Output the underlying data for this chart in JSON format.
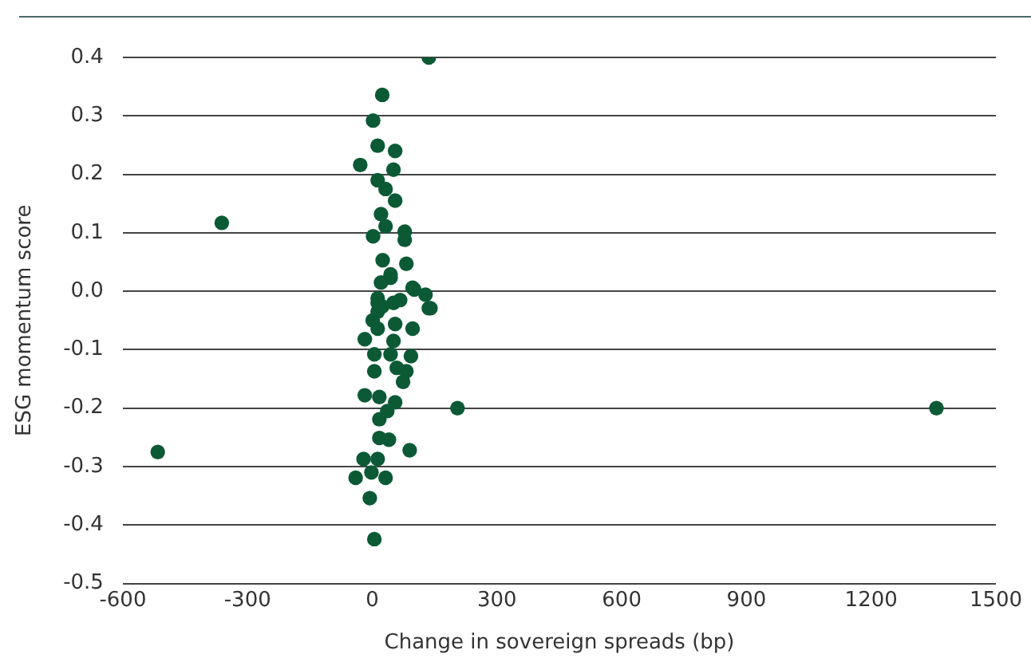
{
  "chart_data": {
    "type": "scatter",
    "xlabel": "Change in sovereign spreads (bp)",
    "ylabel": "ESG momentum score",
    "xlim": [
      -600,
      1500
    ],
    "xticks": [
      -600,
      -300,
      0,
      300,
      600,
      900,
      1200,
      1500
    ],
    "ylim": [
      -0.5,
      0.4
    ],
    "yticks": [
      0.4,
      0.3,
      0.2,
      0.1,
      {
        "value": 0,
        "label": "0.0"
      },
      -0.1,
      -0.2,
      -0.3,
      -0.4,
      -0.5
    ],
    "grid": "y",
    "legend": false,
    "marker": "circle",
    "series": [
      {
        "color": "#0b5a35",
        "x": [
          136,
          24,
          -362,
          -516,
          205,
          1357,
          5,
          -6,
          -40,
          -2,
          32,
          -21,
          13,
          90,
          17,
          40,
          17,
          55,
          36,
          -18,
          17,
          74,
          5,
          59,
          82,
          93,
          44,
          5,
          -18,
          13,
          51,
          97,
          55,
          1,
          24,
          67,
          140,
          128,
          97,
          13,
          44,
          21,
          2,
          13,
          55,
          -29,
          51,
          13,
          32,
          55,
          21,
          2,
          32,
          78,
          78,
          25,
          82,
          44,
          101,
          136,
          13,
          51,
          13
        ],
        "values": [
          0.4,
          0.336,
          0.117,
          -0.275,
          -0.2,
          -0.2,
          -0.424,
          -0.354,
          -0.319,
          -0.31,
          -0.319,
          -0.287,
          -0.287,
          -0.272,
          -0.251,
          -0.254,
          -0.219,
          -0.19,
          -0.205,
          -0.178,
          -0.181,
          -0.155,
          -0.137,
          -0.131,
          -0.137,
          -0.111,
          -0.108,
          -0.108,
          -0.082,
          -0.064,
          -0.085,
          -0.064,
          -0.056,
          -0.05,
          -0.026,
          -0.015,
          -0.029,
          -0.006,
          0.006,
          -0.02,
          0.023,
          0.015,
          0.292,
          0.249,
          0.24,
          0.216,
          0.208,
          0.19,
          0.175,
          0.155,
          0.132,
          0.094,
          0.111,
          0.102,
          0.088,
          0.053,
          0.047,
          0.029,
          0.003,
          -0.029,
          -0.012,
          -0.02,
          -0.035
        ]
      }
    ]
  }
}
